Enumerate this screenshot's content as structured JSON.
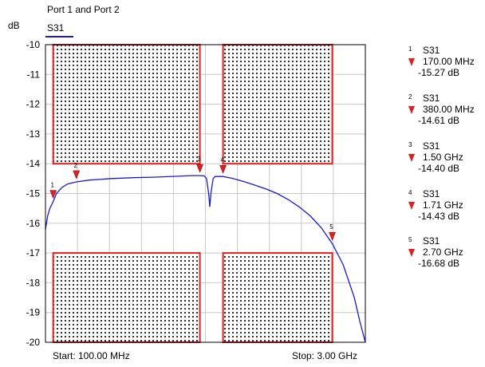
{
  "header": {
    "title": "Port 1 and Port 2",
    "trace_tab": "S31"
  },
  "chart_data": {
    "type": "line",
    "title": "Port 1 and Port 2",
    "ylabel": "dB",
    "ylim": [
      -20,
      -10
    ],
    "yticks": [
      "-10",
      "-11",
      "-12",
      "-13",
      "-14",
      "-15",
      "-16",
      "-17",
      "-18",
      "-19",
      "-20"
    ],
    "xlim_mhz": [
      100,
      3000
    ],
    "start_label": "Start: 100.00 MHz",
    "stop_label": "Stop: 3.00 GHz",
    "grid": true,
    "series": [
      {
        "name": "S31",
        "color": "#1a1ad0",
        "x_mhz": [
          100,
          120,
          140,
          170,
          200,
          250,
          300,
          380,
          500,
          700,
          900,
          1100,
          1300,
          1420,
          1500,
          1540,
          1560,
          1580,
          1590,
          1600,
          1620,
          1640,
          1660,
          1700,
          1710,
          1800,
          1900,
          2000,
          2100,
          2200,
          2300,
          2400,
          2500,
          2600,
          2700,
          2800,
          2900,
          2950,
          3000
        ],
        "y_db": [
          -16.2,
          -15.75,
          -15.5,
          -15.27,
          -15.0,
          -14.8,
          -14.68,
          -14.61,
          -14.55,
          -14.5,
          -14.47,
          -14.45,
          -14.42,
          -14.4,
          -14.4,
          -14.41,
          -14.5,
          -15.0,
          -15.45,
          -15.0,
          -14.5,
          -14.43,
          -14.43,
          -14.43,
          -14.43,
          -14.5,
          -14.6,
          -14.72,
          -14.85,
          -15.0,
          -15.2,
          -15.45,
          -15.75,
          -16.15,
          -16.68,
          -17.4,
          -18.5,
          -19.3,
          -20.0
        ]
      }
    ],
    "limit_regions": [
      {
        "x_mhz": [
          170,
          1500
        ],
        "y_db": [
          -14,
          -10
        ]
      },
      {
        "x_mhz": [
          1710,
          2700
        ],
        "y_db": [
          -14,
          -10
        ]
      },
      {
        "x_mhz": [
          170,
          1500
        ],
        "y_db": [
          -20,
          -17
        ]
      },
      {
        "x_mhz": [
          1710,
          2700
        ],
        "y_db": [
          -20,
          -17
        ]
      }
    ],
    "limit_color": "#e02020",
    "markers": [
      {
        "num": "1",
        "trace": "S31",
        "x_mhz": 170,
        "freq": "170.00 MHz",
        "value": "-15.27 dB",
        "y_db": -15.27
      },
      {
        "num": "2",
        "trace": "S31",
        "x_mhz": 380,
        "freq": "380.00 MHz",
        "value": "-14.61 dB",
        "y_db": -14.61
      },
      {
        "num": "3",
        "trace": "S31",
        "x_mhz": 1500,
        "freq": "1.50 GHz",
        "value": "-14.40 dB",
        "y_db": -14.4
      },
      {
        "num": "4",
        "trace": "S31",
        "x_mhz": 1710,
        "freq": "1.71 GHz",
        "value": "-14.43 dB",
        "y_db": -14.43
      },
      {
        "num": "5",
        "trace": "S31",
        "x_mhz": 2700,
        "freq": "2.70 GHz",
        "value": "-16.68 dB",
        "y_db": -16.68
      }
    ]
  }
}
